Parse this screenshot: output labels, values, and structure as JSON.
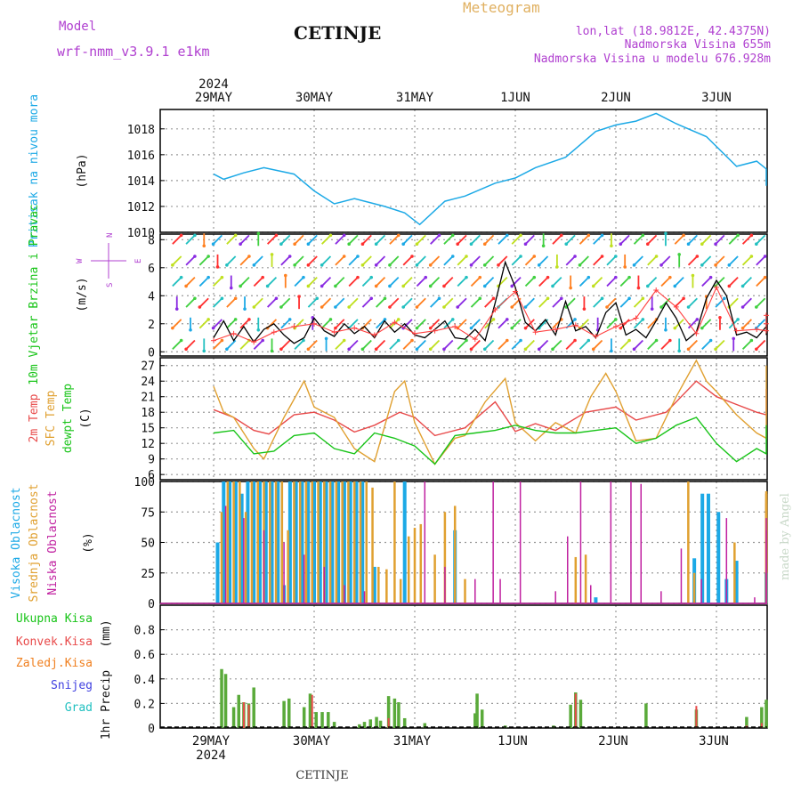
{
  "header": {
    "model_label": "Model",
    "model_name": "wrf-nmm_v3.9.1 e1km",
    "station": "CETINJE",
    "product": "Meteogram",
    "lonlat": "lon,lat (18.9812E, 42.4375N)",
    "altitude": "Nadmorska Visina 655m",
    "model_altitude": "Nadmorska Visina u modelu 676.928m",
    "footer_station": "CETINJE",
    "watermark": "made by Angel"
  },
  "time_axis": {
    "year": "2024",
    "days": [
      "29MAY",
      "30MAY",
      "31MAY",
      "1JUN",
      "2JUN",
      "3JUN"
    ]
  },
  "colors": {
    "pressure": "#1ca9e6",
    "wind_speed": "#000000",
    "wind_gust": "#ff4040",
    "temp_2m": "#e84a4a",
    "temp_sfc": "#e0a030",
    "dewpoint": "#18c418",
    "cloud_high": "#1ca9e6",
    "cloud_mid": "#e0a030",
    "cloud_low": "#c020a0",
    "precip_total": "#5aaa3a",
    "precip_conv": "#e84a4a",
    "precip_frz": "#f08020",
    "snow": "#4040e0",
    "graupel": "#20c0c0",
    "panel_labels": {
      "pressure": "#1ca9e6",
      "wind": "#18c418",
      "axis_black": "#000000",
      "wind_rose": "#b040d0"
    }
  },
  "chart_data": [
    {
      "type": "line",
      "panel": "pressure",
      "ylabel": "Pritisak na nivou mora",
      "units": "(hPa)",
      "ylim": [
        1010,
        1019.5
      ],
      "yticks": [
        1010,
        1012,
        1014,
        1016,
        1018
      ],
      "xlim_days": [
        0,
        6
      ],
      "series": [
        {
          "x": [
            0,
            0.1,
            0.3,
            0.5,
            0.8,
            1.0,
            1.2,
            1.4,
            1.7,
            1.9,
            2.05,
            2.3,
            2.5,
            2.8,
            3.0,
            3.2,
            3.5,
            3.8,
            4.0,
            4.2,
            4.4,
            4.6,
            4.9,
            5.2,
            5.4,
            5.6,
            5.8,
            6.0
          ],
          "values": [
            1014.5,
            1014.1,
            1014.6,
            1015.0,
            1014.5,
            1013.2,
            1012.2,
            1012.6,
            1012.0,
            1011.5,
            1010.6,
            1012.4,
            1012.8,
            1013.8,
            1014.2,
            1015.0,
            1015.8,
            1017.8,
            1018.3,
            1018.6,
            1019.2,
            1018.4,
            1017.4,
            1015.1,
            1015.5,
            1014.9,
            1014.6,
            1013.6
          ]
        }
      ]
    },
    {
      "type": "line",
      "panel": "wind",
      "ylabel": "10m Vjetar Brzina i Pravac",
      "units": "(m/s)",
      "wind_rose": [
        "N",
        "W",
        "E",
        "S"
      ],
      "ylim": [
        -0.3,
        8.4
      ],
      "yticks": [
        0,
        2,
        4,
        6,
        8
      ],
      "series": [
        {
          "name": "speed",
          "x": [
            0,
            0.1,
            0.2,
            0.3,
            0.4,
            0.5,
            0.6,
            0.7,
            0.8,
            0.9,
            1.0,
            1.1,
            1.2,
            1.3,
            1.4,
            1.5,
            1.6,
            1.7,
            1.8,
            1.9,
            2.0,
            2.1,
            2.2,
            2.3,
            2.4,
            2.5,
            2.6,
            2.7,
            2.8,
            2.9,
            3.0,
            3.1,
            3.2,
            3.3,
            3.4,
            3.5,
            3.6,
            3.7,
            3.8,
            3.9,
            4.0,
            4.1,
            4.2,
            4.3,
            4.4,
            4.5,
            4.6,
            4.7,
            4.8,
            4.9,
            5.0,
            5.1,
            5.2,
            5.3,
            5.4,
            5.5,
            5.6,
            5.7,
            5.8,
            5.9,
            6.0
          ],
          "values": [
            1.0,
            2.2,
            0.8,
            1.8,
            0.7,
            1.6,
            2.0,
            1.2,
            0.6,
            1.0,
            2.4,
            1.5,
            1.1,
            2.0,
            1.3,
            1.8,
            1.0,
            2.2,
            1.4,
            2.0,
            1.2,
            1.0,
            1.6,
            2.2,
            1.0,
            0.9,
            1.6,
            0.8,
            3.5,
            6.4,
            4.6,
            2.1,
            1.5,
            2.3,
            1.2,
            3.6,
            1.5,
            1.8,
            1.0,
            2.8,
            3.5,
            1.2,
            1.6,
            1.0,
            2.2,
            3.5,
            2.4,
            0.8,
            1.4,
            3.8,
            5.1,
            4.0,
            1.2,
            1.4,
            1.0,
            1.8,
            2.4,
            1.2,
            2.0,
            2.7,
            2.5
          ]
        },
        {
          "name": "gust",
          "x": [
            0,
            0.2,
            0.4,
            0.6,
            0.8,
            1.0,
            1.2,
            1.4,
            1.6,
            1.8,
            2.0,
            2.2,
            2.4,
            2.6,
            2.8,
            3.0,
            3.2,
            3.4,
            3.6,
            3.8,
            4.0,
            4.2,
            4.4,
            4.6,
            4.8,
            5.0,
            5.2,
            5.4,
            5.6,
            5.8,
            6.0
          ],
          "values": [
            0.8,
            1.3,
            0.7,
            1.4,
            1.8,
            2.0,
            1.4,
            1.7,
            1.2,
            2.1,
            1.3,
            1.5,
            1.8,
            0.9,
            3.0,
            4.3,
            1.4,
            1.6,
            1.9,
            1.1,
            1.8,
            2.4,
            4.4,
            3.2,
            1.3,
            4.6,
            1.5,
            1.6,
            1.5,
            2.0,
            2.6
          ]
        }
      ],
      "arrow_direction_sequence": [
        "NE",
        "NE",
        "SW",
        "S",
        "NE",
        "SW",
        "NE",
        "NE",
        "S",
        "SW",
        "NE",
        "SW",
        "N",
        "NE",
        "SW",
        "SW",
        "SW",
        "NE",
        "NE",
        "SW",
        "SW",
        "SW",
        "NE",
        "SW",
        "SW",
        "NE",
        "NE",
        "SW",
        "SW",
        "SW"
      ]
    },
    {
      "type": "line",
      "panel": "temperature",
      "ylabel_lines": [
        "2m Temp",
        "SFC Temp",
        "dewpt Temp"
      ],
      "units": "(C)",
      "ylim": [
        5,
        28.5
      ],
      "yticks": [
        6,
        9,
        12,
        15,
        18,
        21,
        24,
        27
      ],
      "series": [
        {
          "name": "2m Temp",
          "x": [
            0,
            0.2,
            0.4,
            0.55,
            0.8,
            1.0,
            1.2,
            1.4,
            1.6,
            1.85,
            2.0,
            2.2,
            2.5,
            2.8,
            3.0,
            3.2,
            3.4,
            3.7,
            4.0,
            4.2,
            4.5,
            4.8,
            5.0,
            5.2,
            5.4,
            5.6,
            5.8,
            6.0
          ],
          "values": [
            18.5,
            17.0,
            14.5,
            13.8,
            17.5,
            18.0,
            16.5,
            14.2,
            15.5,
            18.0,
            17.0,
            13.5,
            15.0,
            20.0,
            14.3,
            15.8,
            14.5,
            18.0,
            19.0,
            16.5,
            18.0,
            24.0,
            21.0,
            19.5,
            18.0,
            17.5,
            21.0,
            22.5
          ]
        },
        {
          "name": "SFC Temp",
          "x": [
            0,
            0.1,
            0.2,
            0.4,
            0.5,
            0.7,
            0.9,
            1.0,
            1.2,
            1.4,
            1.6,
            1.8,
            1.9,
            2.0,
            2.2,
            2.4,
            2.5,
            2.7,
            2.9,
            3.0,
            3.2,
            3.4,
            3.6,
            3.75,
            3.9,
            4.0,
            4.2,
            4.4,
            4.6,
            4.8,
            4.9,
            5.0,
            5.2,
            5.4,
            5.6,
            5.8,
            5.9,
            6.0
          ],
          "values": [
            23.0,
            18.0,
            17.0,
            11.0,
            9.0,
            17.0,
            24.0,
            19.0,
            17.0,
            11.0,
            8.5,
            22.0,
            24.0,
            16.0,
            8.0,
            13.0,
            13.5,
            20.0,
            24.5,
            16.0,
            12.5,
            16.0,
            14.0,
            21.0,
            25.5,
            22.0,
            12.5,
            13.0,
            21.0,
            28.0,
            24.0,
            22.0,
            17.5,
            14.0,
            13.0,
            20.0,
            27.0,
            26.0
          ]
        },
        {
          "name": "dewpt Temp",
          "x": [
            0,
            0.2,
            0.4,
            0.6,
            0.8,
            1.0,
            1.2,
            1.4,
            1.6,
            1.8,
            2.0,
            2.2,
            2.4,
            2.6,
            2.8,
            3.0,
            3.2,
            3.4,
            3.6,
            3.8,
            4.0,
            4.2,
            4.4,
            4.6,
            4.8,
            5.0,
            5.2,
            5.4,
            5.6,
            5.8,
            6.0
          ],
          "values": [
            14.0,
            14.5,
            10.0,
            10.5,
            13.5,
            14.0,
            11.0,
            10.0,
            14.0,
            13.0,
            11.5,
            8.0,
            13.5,
            14.0,
            14.5,
            15.5,
            14.5,
            14.0,
            14.0,
            14.5,
            15.0,
            12.0,
            13.0,
            15.5,
            17.0,
            12.0,
            8.5,
            11.0,
            10.0,
            13.0,
            15.5
          ]
        }
      ]
    },
    {
      "type": "bar",
      "panel": "clouds",
      "ylabel_lines": [
        "Visoka Oblacnost",
        "Srednja Oblacnost",
        "Niska Oblacnost"
      ],
      "units": "(%)",
      "ylim": [
        0,
        100
      ],
      "yticks": [
        0,
        25,
        50,
        75,
        100
      ],
      "series": [
        {
          "name": "Visoka Oblacnost",
          "x": [
            0.04,
            0.1,
            0.16,
            0.22,
            0.28,
            0.34,
            0.4,
            0.46,
            0.52,
            0.58,
            0.64,
            0.7,
            0.76,
            0.82,
            0.88,
            0.94,
            1.0,
            1.06,
            1.12,
            1.18,
            1.24,
            1.3,
            1.36,
            1.42,
            1.48,
            1.6,
            1.9,
            2.4,
            3.8,
            4.78,
            4.86,
            4.92,
            5.02,
            5.1,
            5.2,
            6.0
          ],
          "values": [
            50,
            100,
            100,
            100,
            90,
            100,
            100,
            100,
            100,
            100,
            100,
            15,
            100,
            100,
            100,
            100,
            100,
            100,
            100,
            100,
            100,
            100,
            100,
            100,
            100,
            30,
            100,
            60,
            5,
            37,
            90,
            90,
            75,
            20,
            35,
            25
          ]
        },
        {
          "name": "Srednja Oblacnost",
          "x": [
            0.08,
            0.14,
            0.2,
            0.26,
            0.32,
            0.38,
            0.44,
            0.5,
            0.56,
            0.62,
            0.68,
            0.74,
            0.8,
            0.86,
            0.92,
            0.98,
            1.04,
            1.1,
            1.16,
            1.22,
            1.28,
            1.34,
            1.4,
            1.46,
            1.52,
            1.58,
            1.64,
            1.72,
            1.8,
            1.86,
            1.94,
            2.0,
            2.06,
            2.2,
            2.3,
            2.4,
            2.5,
            3.6,
            3.7,
            4.72,
            4.78,
            5.18,
            5.52,
            5.58,
            5.64,
            5.7,
            5.76
          ],
          "values": [
            75,
            100,
            100,
            100,
            75,
            100,
            100,
            100,
            100,
            100,
            100,
            60,
            100,
            100,
            100,
            100,
            100,
            100,
            100,
            100,
            100,
            100,
            100,
            100,
            100,
            95,
            30,
            28,
            100,
            20,
            55,
            62,
            65,
            40,
            75,
            80,
            20,
            38,
            40,
            100,
            25,
            50,
            92,
            90,
            85,
            82,
            70
          ]
        },
        {
          "name": "Niska Oblacnost",
          "x": [
            0.12,
            0.3,
            0.5,
            0.7,
            0.9,
            1.1,
            1.3,
            1.5,
            2.1,
            2.3,
            2.6,
            2.78,
            2.85,
            3.05,
            3.4,
            3.52,
            3.65,
            3.75,
            3.95,
            4.15,
            4.25,
            4.45,
            4.65,
            4.85,
            5.1,
            5.38,
            5.78,
            5.92
          ],
          "values": [
            80,
            70,
            60,
            50,
            40,
            30,
            15,
            10,
            100,
            30,
            20,
            100,
            20,
            100,
            10,
            55,
            100,
            15,
            100,
            100,
            98,
            10,
            45,
            20,
            70,
            5,
            60,
            70
          ]
        }
      ]
    },
    {
      "type": "bar",
      "panel": "precipitation",
      "ylabel": "1hr Precip",
      "units": "(mm)",
      "legend": [
        "Ukupna Kisa",
        "Konvek.Kisa",
        "Zaledj.Kisa",
        "Snijeg",
        "Grad"
      ],
      "ylim": [
        0,
        1.0
      ],
      "yticks": [
        0,
        0.2,
        0.4,
        0.6,
        0.8
      ],
      "series": [
        {
          "name": "Ukupna Kisa",
          "x": [
            0.08,
            0.12,
            0.2,
            0.25,
            0.3,
            0.35,
            0.4,
            0.7,
            0.75,
            0.9,
            0.96,
            1.02,
            1.08,
            1.14,
            1.2,
            1.45,
            1.5,
            1.56,
            1.62,
            1.66,
            1.74,
            1.8,
            1.84,
            1.9,
            2.1,
            2.6,
            2.62,
            2.67,
            2.9,
            3.38,
            3.55,
            3.6,
            3.65,
            4.3,
            4.8,
            5.3,
            5.45,
            5.55,
            5.75
          ],
          "values": [
            0.48,
            0.44,
            0.17,
            0.27,
            0.21,
            0.2,
            0.33,
            0.22,
            0.24,
            0.17,
            0.28,
            0.13,
            0.13,
            0.13,
            0.05,
            0.03,
            0.05,
            0.07,
            0.09,
            0.06,
            0.26,
            0.24,
            0.21,
            0.08,
            0.04,
            0.12,
            0.28,
            0.15,
            0.02,
            0.02,
            0.19,
            0.29,
            0.23,
            0.2,
            0.15,
            0.09,
            0.17,
            0.05,
            0.23
          ]
        },
        {
          "name": "Konvek.Kisa",
          "x": [
            0.3,
            0.35,
            0.98,
            1.74,
            3.6,
            4.8,
            5.3,
            5.45
          ],
          "values": [
            0.21,
            0.19,
            0.27,
            0.08,
            0.28,
            0.18,
            0.02,
            0.04
          ]
        },
        {
          "name": "Snijeg",
          "x": [],
          "values": []
        }
      ]
    }
  ]
}
